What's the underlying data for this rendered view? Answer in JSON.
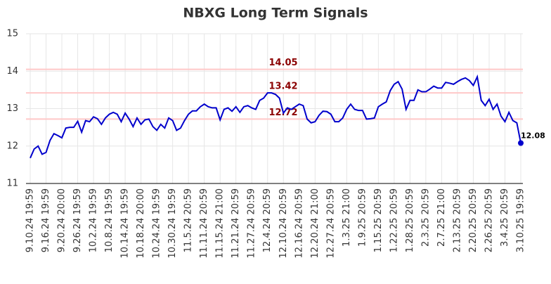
{
  "chart_data": {
    "type": "line",
    "title": "NBXG Long Term Signals",
    "categories": [
      "9.10.24 19:59",
      null,
      null,
      null,
      "9.16.24 19:59",
      null,
      null,
      null,
      "9.20.24 20:00",
      null,
      null,
      null,
      "9.26.24 19:59",
      null,
      null,
      null,
      "10.2.24 19:59",
      null,
      null,
      null,
      "10.8.24 19:59",
      null,
      null,
      null,
      "10.14.24 19:59",
      null,
      null,
      null,
      "10.18.24 20:00",
      null,
      null,
      null,
      "10.24.24 19:59",
      null,
      null,
      null,
      "10.30.24 19:59",
      null,
      null,
      null,
      "11.5.24 20:59",
      null,
      null,
      null,
      "11.11.24 20:59",
      null,
      null,
      null,
      "11.15.24 21:00",
      null,
      null,
      null,
      "11.21.24 20:59",
      null,
      null,
      null,
      "11.27.24 20:59",
      null,
      null,
      null,
      "12.4.24 20:59",
      null,
      null,
      null,
      "12.10.24 20:59",
      null,
      null,
      null,
      "12.16.24 20:59",
      null,
      null,
      null,
      "12.20.24 21:00",
      null,
      null,
      null,
      "12.27.24 20:59",
      null,
      null,
      null,
      "1.3.25 21:00",
      null,
      null,
      null,
      "1.9.25 20:59",
      null,
      null,
      null,
      "1.15.25 20:59",
      null,
      null,
      null,
      "1.22.25 20:59",
      null,
      null,
      null,
      "1.28.25 20:59",
      null,
      null,
      null,
      "2.3.25 20:59",
      null,
      null,
      null,
      "2.7.25 21:00",
      null,
      null,
      null,
      "2.13.25 20:59",
      null,
      null,
      null,
      "2.20.25 20:59",
      null,
      null,
      null,
      "2.26.25 20:59",
      null,
      null,
      null,
      "3.4.25 20:59",
      null,
      null,
      null,
      "3.10.25 19:59"
    ],
    "values": [
      11.68,
      11.92,
      12.0,
      11.78,
      11.83,
      12.15,
      12.33,
      12.28,
      12.22,
      12.48,
      12.5,
      12.5,
      12.66,
      12.37,
      12.68,
      12.65,
      12.78,
      12.73,
      12.58,
      12.75,
      12.85,
      12.9,
      12.85,
      12.65,
      12.88,
      12.72,
      12.52,
      12.75,
      12.58,
      12.7,
      12.72,
      12.52,
      12.42,
      12.58,
      12.48,
      12.75,
      12.68,
      12.42,
      12.48,
      12.68,
      12.85,
      12.94,
      12.94,
      13.05,
      13.12,
      13.05,
      13.02,
      13.02,
      12.7,
      12.98,
      13.02,
      12.93,
      13.05,
      12.9,
      13.05,
      13.08,
      13.02,
      12.98,
      13.22,
      13.28,
      13.42,
      13.42,
      13.38,
      13.28,
      12.88,
      13.02,
      12.98,
      13.05,
      13.12,
      13.08,
      12.72,
      12.62,
      12.65,
      12.82,
      12.93,
      12.92,
      12.85,
      12.65,
      12.65,
      12.75,
      12.98,
      13.12,
      12.98,
      12.95,
      12.95,
      12.72,
      12.73,
      12.75,
      13.05,
      13.12,
      13.18,
      13.48,
      13.65,
      13.72,
      13.52,
      12.98,
      13.22,
      13.22,
      13.5,
      13.45,
      13.45,
      13.52,
      13.6,
      13.55,
      13.55,
      13.7,
      13.68,
      13.65,
      13.72,
      13.78,
      13.82,
      13.75,
      13.62,
      13.85,
      13.22,
      13.08,
      13.25,
      12.98,
      13.12,
      12.8,
      12.65,
      12.9,
      12.68,
      12.62,
      12.08
    ],
    "color": "#0000cc",
    "hlines": [
      14.05,
      13.42,
      12.72
    ],
    "hline_color": "#ffc8c8",
    "hline_label_color": "#8b0000",
    "ylim": [
      11,
      15
    ],
    "yticks": [
      11,
      12,
      13,
      14,
      15
    ],
    "grid": true
  }
}
